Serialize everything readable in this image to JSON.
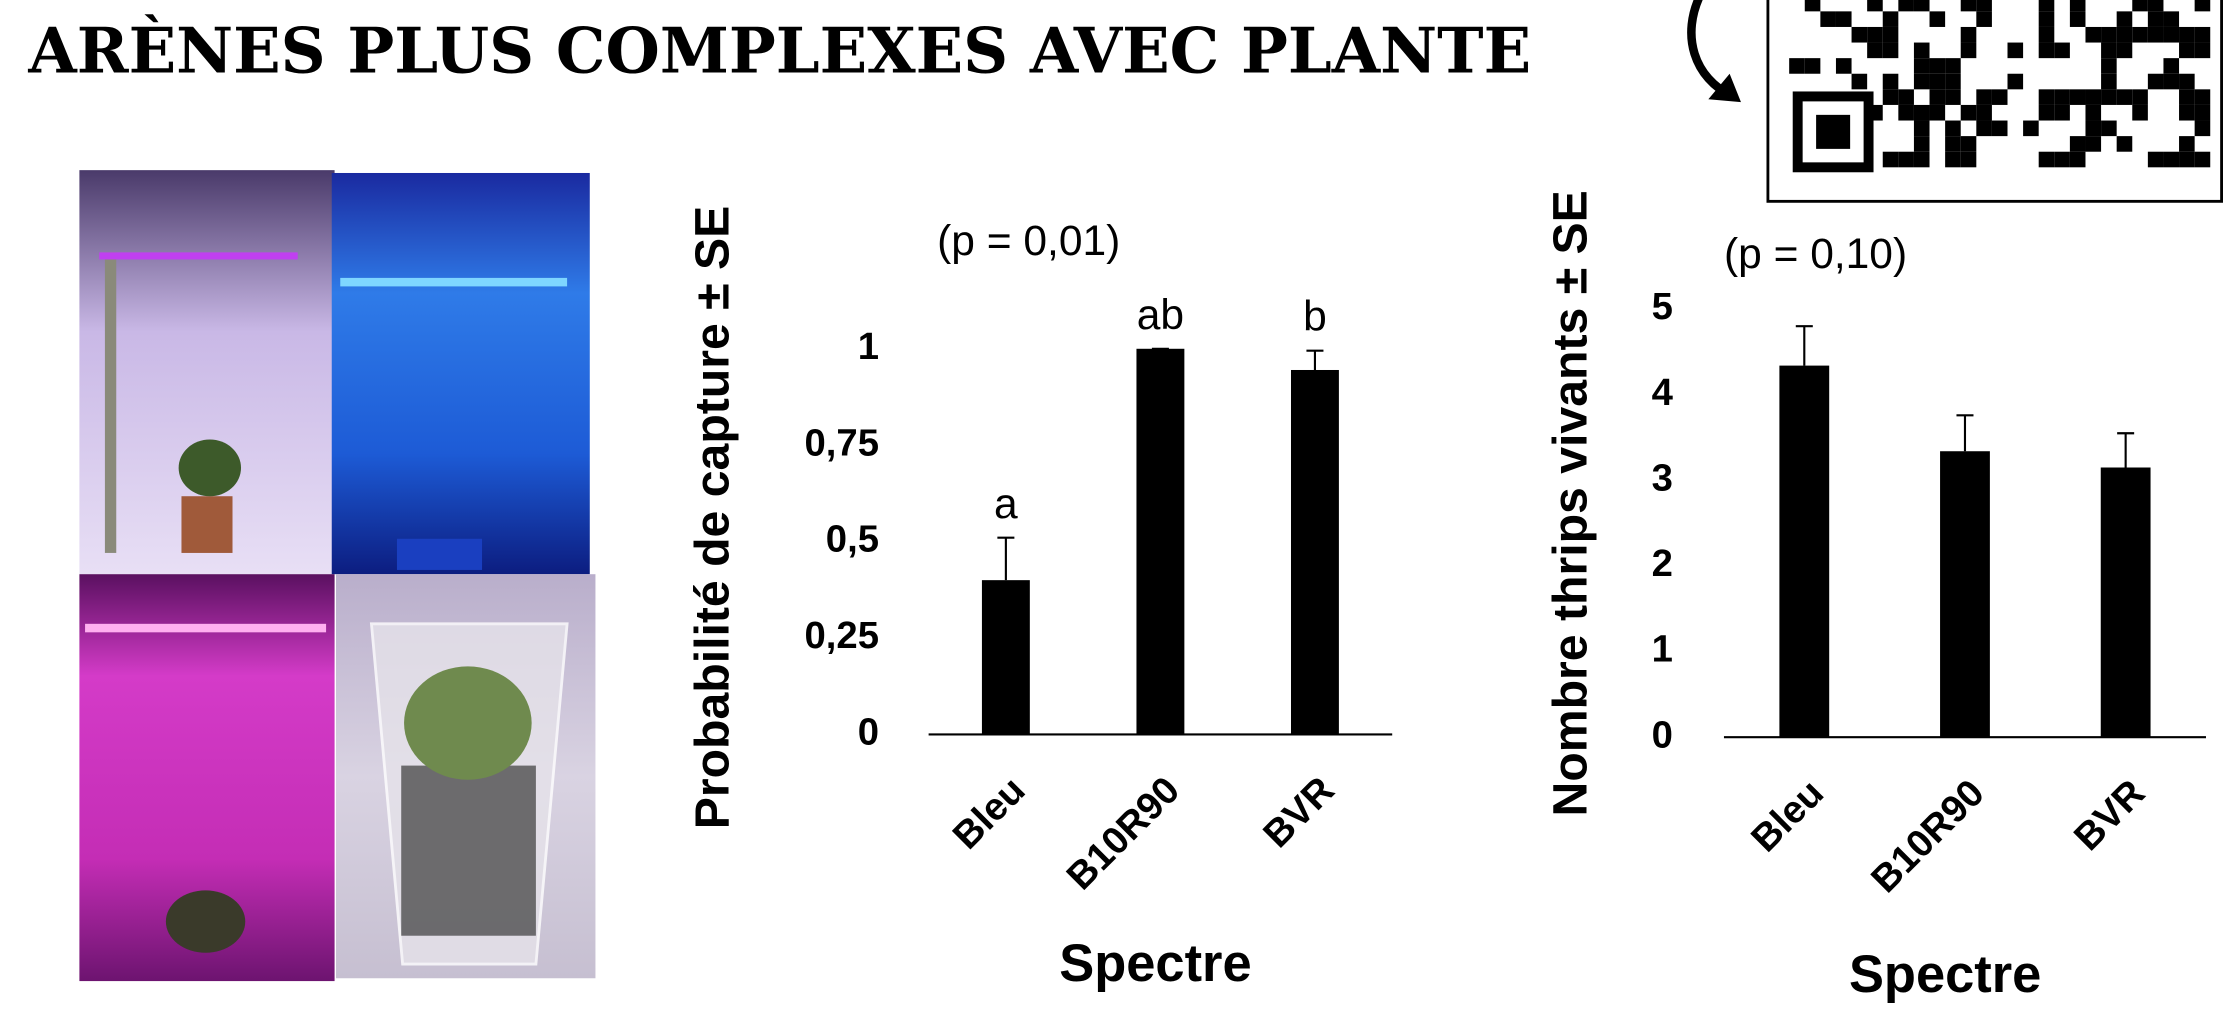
{
  "title": "ARÈNES PLUS COMPLEXES AVEC PLANTE",
  "chart_data": [
    {
      "type": "bar",
      "annotation": "(p = 0,01)",
      "y_label": "Probabilité de capture ± SE",
      "x_label": "Spectre",
      "categories": [
        "Bleu",
        "B10R90",
        "BVR"
      ],
      "values": [
        0.4,
        1.0,
        0.945
      ],
      "errors": [
        0.11,
        0,
        0.05
      ],
      "group_letters": [
        "a",
        "ab",
        "b"
      ],
      "color": "#000000",
      "ylim": [
        0,
        1
      ],
      "yticks": [
        0,
        {
          "value": 0.25,
          "label": "0,25"
        },
        {
          "value": 0.5,
          "label": "0,5"
        },
        {
          "value": 0.75,
          "label": "0,75"
        },
        1
      ]
    },
    {
      "type": "bar",
      "annotation": "(p = 0,10)",
      "y_label": "Nombre thrips vivants  ± SE",
      "x_label": "Spectre",
      "categories": [
        "Bleu",
        "B10R90",
        "BVR"
      ],
      "values": [
        4.34,
        3.34,
        3.15
      ],
      "errors": [
        0.46,
        0.42,
        0.4
      ],
      "color": "#000000",
      "ylim": [
        0,
        5
      ],
      "yticks": [
        0,
        1,
        2,
        3,
        4,
        5
      ]
    }
  ]
}
